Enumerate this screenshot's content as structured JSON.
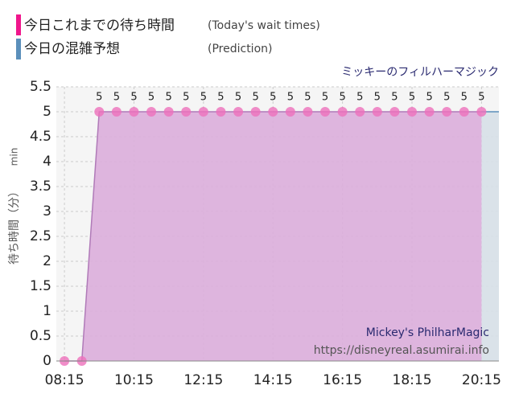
{
  "chart_data": {
    "type": "area",
    "title": "ミッキーのフィルハーマジック",
    "y_label": "待ち時間（分）",
    "y_unit": "min",
    "watermark": [
      "Mickey's PhilharMagic",
      "https://disneyreal.asumirai.info"
    ],
    "series": [
      {
        "name": "今日これまでの待ち時間",
        "name_en": "(Today's wait times)",
        "color": "#f0168c",
        "fill": "#dcaedb",
        "marker": "#ee70bb",
        "x": [
          "08:15",
          "08:45",
          "09:15",
          "09:45",
          "10:15",
          "10:45",
          "11:15",
          "11:45",
          "12:15",
          "12:45",
          "13:15",
          "13:45",
          "14:15",
          "14:45",
          "15:15",
          "15:45",
          "16:15",
          "16:45",
          "17:15",
          "17:45",
          "18:15",
          "18:45",
          "19:15",
          "19:45",
          "20:15"
        ],
        "values": [
          0,
          0,
          5,
          5,
          5,
          5,
          5,
          5,
          5,
          5,
          5,
          5,
          5,
          5,
          5,
          5,
          5,
          5,
          5,
          5,
          5,
          5,
          5,
          5,
          5
        ]
      },
      {
        "name": "今日の混雑予想",
        "name_en": "(Prediction)",
        "color": "#5b8fbb",
        "fill": "#d7e0e8",
        "x": [
          "20:15",
          "20:45"
        ],
        "values": [
          5,
          5
        ]
      }
    ],
    "xlim": [
      "08:01",
      "20:45"
    ],
    "xticks": [
      "08:15",
      "10:15",
      "12:15",
      "14:15",
      "16:15",
      "18:15",
      "20:15"
    ],
    "ylim": [
      0,
      5.5
    ],
    "yticks": [
      0,
      0.5,
      1,
      1.5,
      2,
      2.5,
      3,
      3.5,
      4,
      4.5,
      5,
      5.5
    ],
    "grid": true
  }
}
